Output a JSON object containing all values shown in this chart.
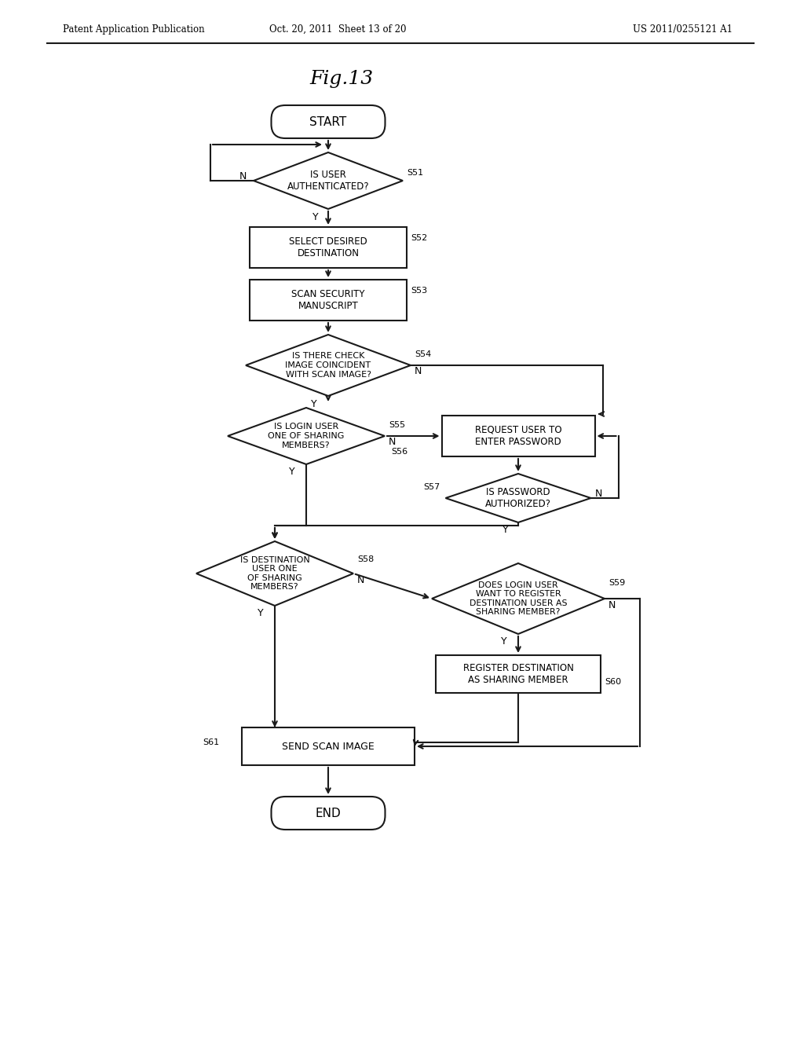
{
  "title": "Fig.13",
  "header_left": "Patent Application Publication",
  "header_mid": "Oct. 20, 2011  Sheet 13 of 20",
  "header_right": "US 2011/0255121 A1",
  "bg_color": "#ffffff",
  "line_color": "#1a1a1a",
  "text_color": "#000000",
  "fig_width": 10.24,
  "fig_height": 13.2,
  "dpi": 100
}
